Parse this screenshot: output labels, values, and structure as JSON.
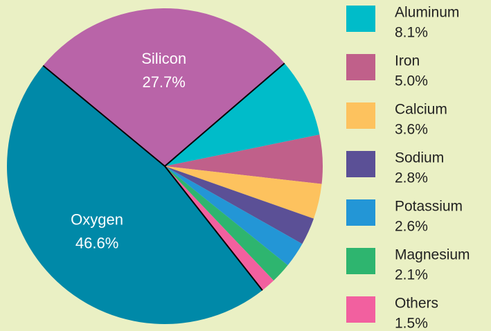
{
  "chart_data": {
    "type": "pie",
    "categories": [
      "Aluminum",
      "Iron",
      "Calcium",
      "Sodium",
      "Potassium",
      "Magnesium",
      "Others",
      "Oxygen",
      "Silicon"
    ],
    "values": [
      8.1,
      5.0,
      3.6,
      2.8,
      2.6,
      2.1,
      1.5,
      46.6,
      27.7
    ],
    "value_labels": [
      "8.1%",
      "5.0%",
      "3.6%",
      "2.8%",
      "2.6%",
      "2.1%",
      "1.5%",
      "46.6%",
      "27.7%"
    ],
    "colors": [
      "#00bcc9",
      "#c0608a",
      "#fdc25e",
      "#5b5096",
      "#2396d6",
      "#2eb56f",
      "#f2609f",
      "#0089a8",
      "#b964a8"
    ]
  }
}
